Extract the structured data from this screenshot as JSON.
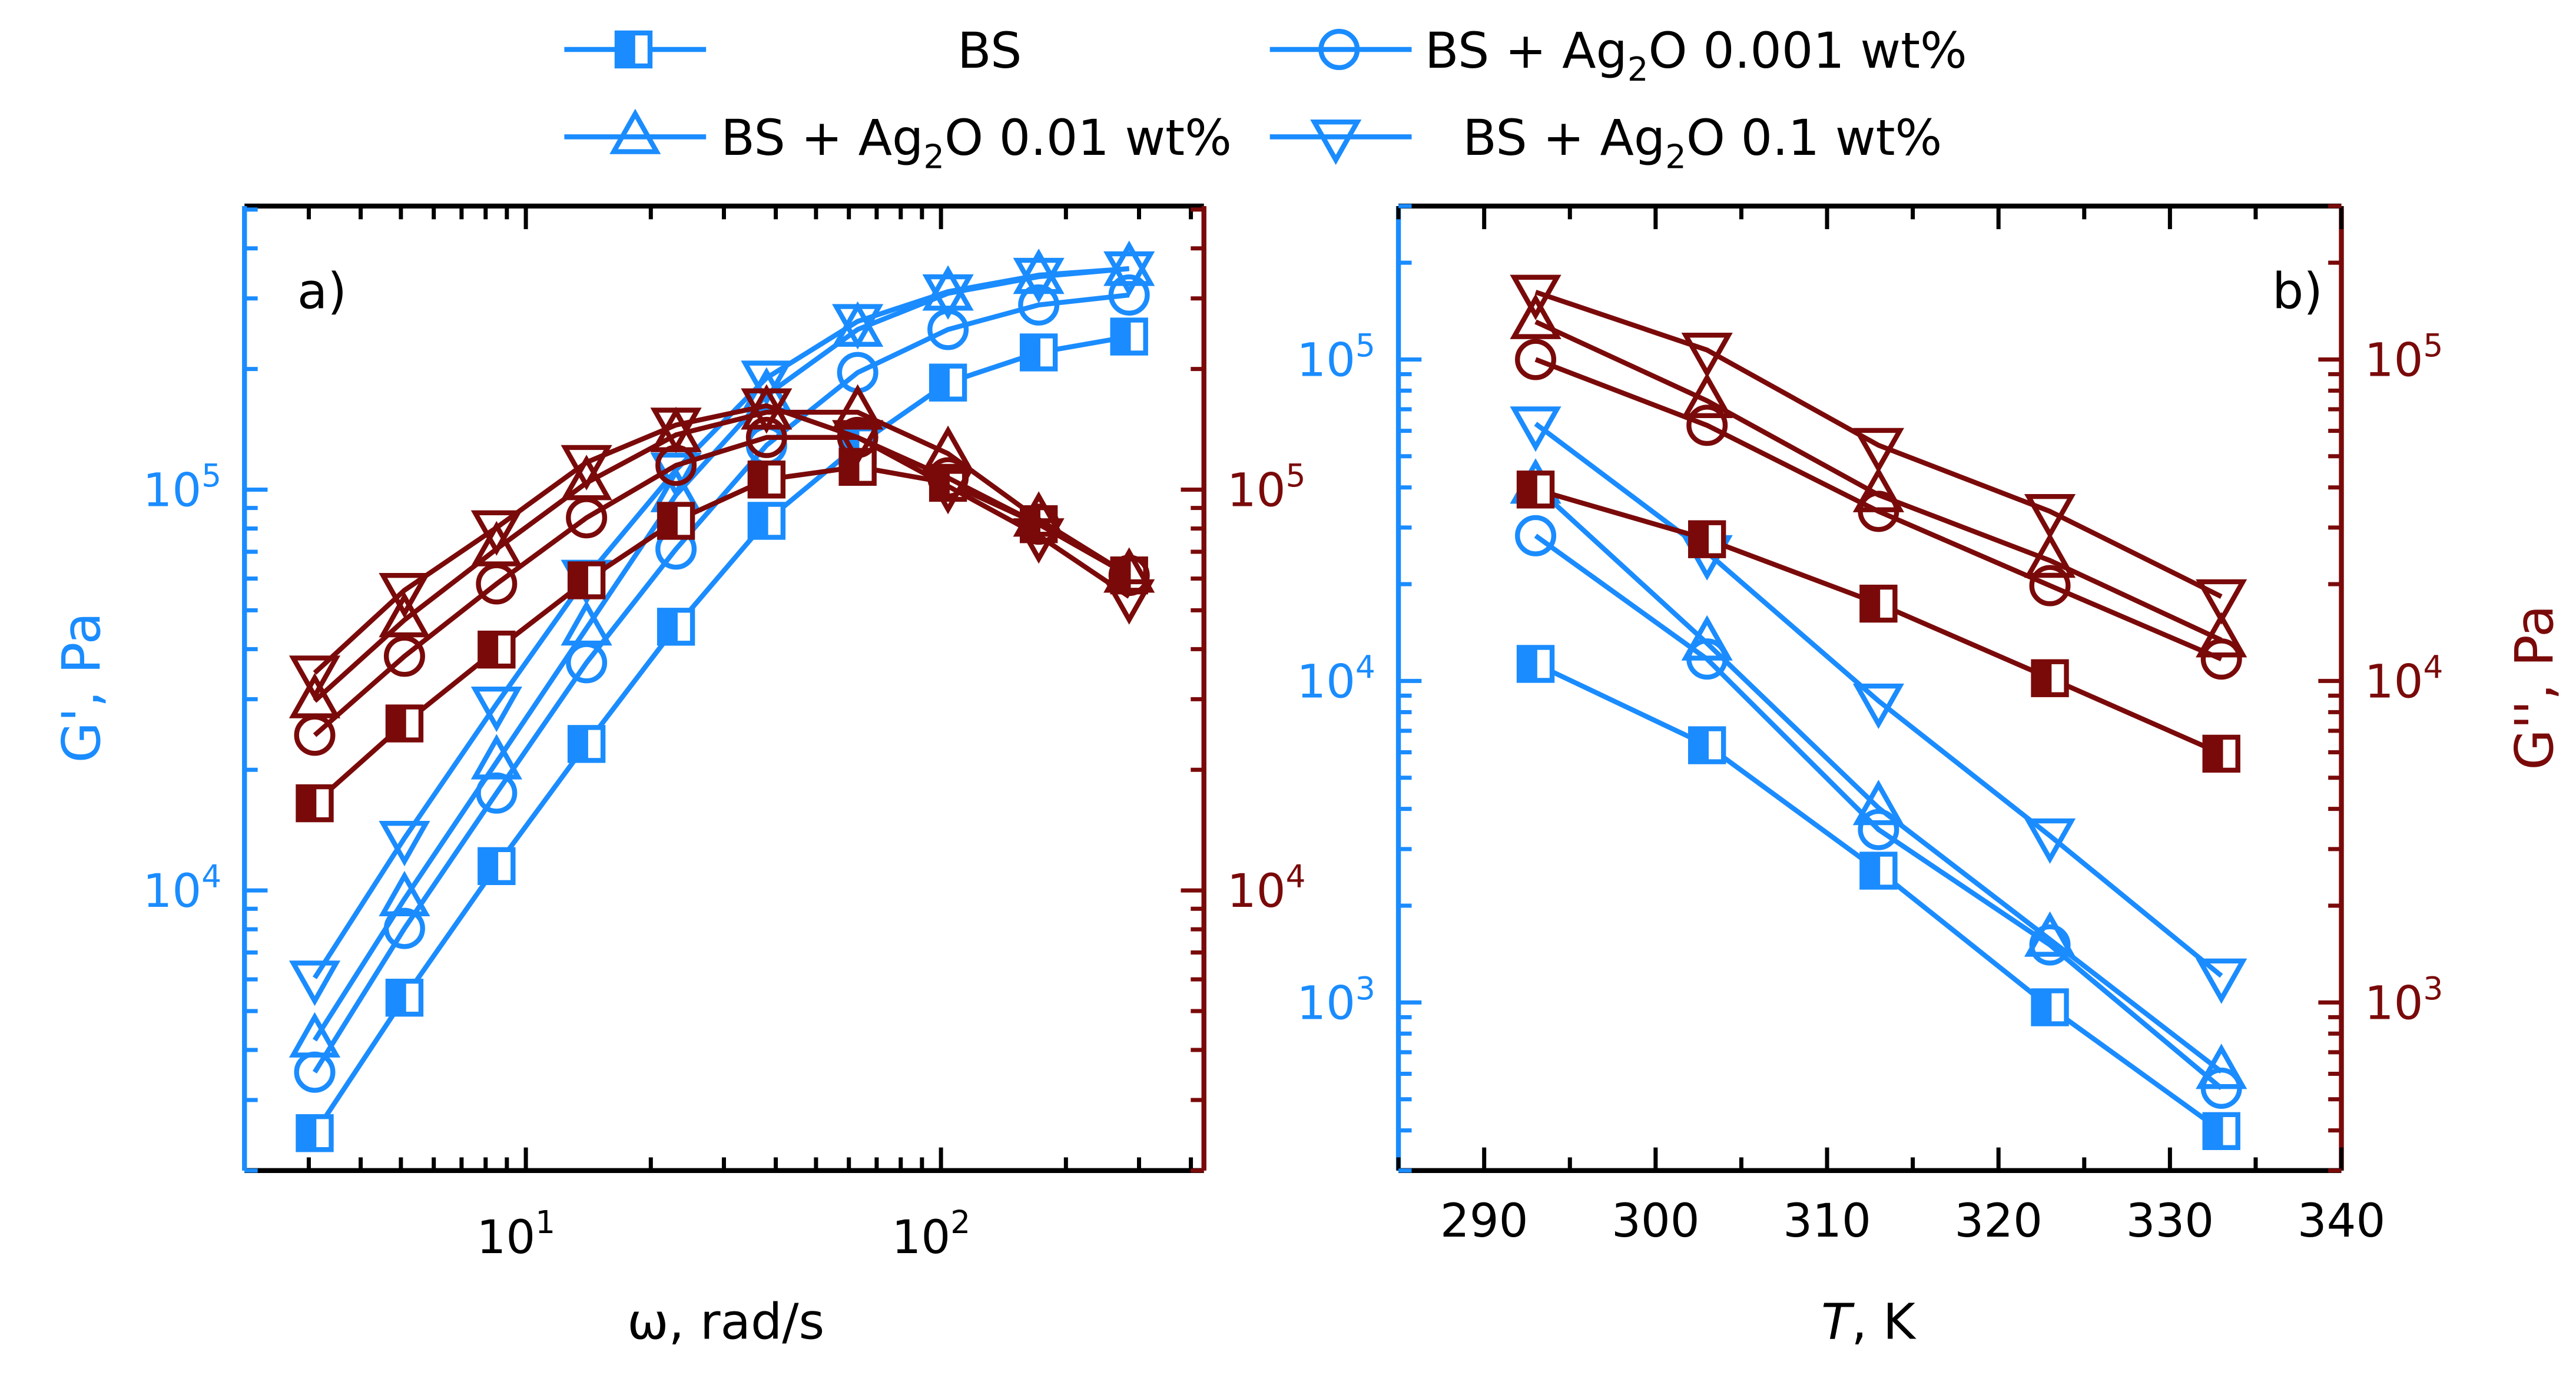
{
  "colors": {
    "gprime": "#1a8cff",
    "gdouble": "#7a0a0a",
    "frame": "#000000"
  },
  "legend": [
    {
      "marker": "half-square",
      "prefix": "BS",
      "sub": "",
      "suffix": ""
    },
    {
      "marker": "circle",
      "prefix": "BS + Ag",
      "sub": "2",
      "suffix": "O 0.001 wt%"
    },
    {
      "marker": "triangle-up",
      "prefix": "BS + Ag",
      "sub": "2",
      "suffix": "O 0.01 wt%"
    },
    {
      "marker": "triangle-down",
      "prefix": "BS + Ag",
      "sub": "2",
      "suffix": "O 0.1 wt%"
    }
  ],
  "chart_data": [
    {
      "type": "line",
      "panel_label": "a)",
      "xlabel": "ω, rad/s",
      "ylabel_left": "G', Pa",
      "ylabel_right": "",
      "xscale": "log",
      "yscale": "log",
      "xlim": [
        2.1,
        430
      ],
      "ylim": [
        2000,
        510000
      ],
      "x_ticks": [
        {
          "value": 10,
          "base": "10",
          "exp": "1"
        },
        {
          "value": 100,
          "base": "10",
          "exp": "2"
        }
      ],
      "y_ticks_left": [
        {
          "value": 10000,
          "base": "10",
          "exp": "4"
        },
        {
          "value": 100000,
          "base": "10",
          "exp": "5"
        }
      ],
      "y_ticks_right": [
        {
          "value": 10000,
          "base": "10",
          "exp": "4"
        },
        {
          "value": 100000,
          "base": "10",
          "exp": "5"
        }
      ],
      "x": [
        3.1,
        5.1,
        8.5,
        14,
        23,
        38,
        63,
        104,
        172,
        284
      ],
      "series": [
        {
          "name": "G' BS",
          "axis": "left",
          "quantity": "gprime",
          "marker": "half-square",
          "values": [
            2480,
            5400,
            11500,
            23200,
            45500,
            83600,
            129000,
            185000,
            220000,
            241000
          ]
        },
        {
          "name": "G' BS + Ag2O 0.001 wt%",
          "axis": "left",
          "quantity": "gprime",
          "marker": "circle",
          "values": [
            3520,
            8040,
            17500,
            37000,
            71100,
            129000,
            196000,
            251000,
            289000,
            306000
          ]
        },
        {
          "name": "G' BS + Ag2O 0.01 wt%",
          "axis": "left",
          "quantity": "gprime",
          "marker": "triangle-up",
          "values": [
            4230,
            9520,
            20900,
            45100,
            97000,
            172000,
            251000,
            309000,
            340000,
            356000
          ]
        },
        {
          "name": "G' BS + Ag2O 0.1 wt%",
          "axis": "left",
          "quantity": "gprime",
          "marker": "triangle-down",
          "values": [
            6050,
            13500,
            29200,
            60500,
            112000,
            190000,
            263000,
            312000,
            343000,
            356000
          ]
        },
        {
          "name": "G'' BS",
          "axis": "right",
          "quantity": "gdouble",
          "marker": "half-square",
          "values": [
            16500,
            26100,
            39900,
            59400,
            83600,
            106000,
            114000,
            104000,
            82000,
            61100
          ]
        },
        {
          "name": "G'' BS + Ag2O 0.001 wt%",
          "axis": "right",
          "quantity": "gdouble",
          "marker": "circle",
          "values": [
            24400,
            38400,
            58200,
            85100,
            115000,
            135000,
            135000,
            107000,
            82000,
            61100
          ]
        },
        {
          "name": "G'' BS + Ag2O 0.01 wt%",
          "axis": "right",
          "quantity": "gdouble",
          "marker": "triangle-up",
          "values": [
            29700,
            47300,
            71100,
            104000,
            137000,
            156000,
            156000,
            123000,
            84300,
            61100
          ]
        },
        {
          "name": "G'' BS + Ag2O 0.1 wt%",
          "axis": "right",
          "quantity": "gdouble",
          "marker": "triangle-down",
          "values": [
            34900,
            56100,
            80400,
            117000,
            145000,
            162000,
            135000,
            102000,
            76800,
            54100
          ]
        }
      ]
    },
    {
      "type": "line",
      "panel_label": "b)",
      "xlabel_italic": "T",
      "xlabel_rest": ", K",
      "ylabel_left": "",
      "ylabel_right": "G'', Pa",
      "xscale": "linear",
      "yscale": "log",
      "xlim": [
        285,
        340
      ],
      "ylim": [
        300,
        300000
      ],
      "x_ticks": [
        {
          "value": 290,
          "label": "290"
        },
        {
          "value": 300,
          "label": "300"
        },
        {
          "value": 310,
          "label": "310"
        },
        {
          "value": 320,
          "label": "320"
        },
        {
          "value": 330,
          "label": "330"
        },
        {
          "value": 340,
          "label": "340"
        }
      ],
      "y_ticks_left": [
        {
          "value": 1000,
          "base": "10",
          "exp": "3"
        },
        {
          "value": 10000,
          "base": "10",
          "exp": "4"
        },
        {
          "value": 100000,
          "base": "10",
          "exp": "5"
        }
      ],
      "y_ticks_right": [
        {
          "value": 1000,
          "base": "10",
          "exp": "3"
        },
        {
          "value": 10000,
          "base": "10",
          "exp": "4"
        },
        {
          "value": 100000,
          "base": "10",
          "exp": "5"
        }
      ],
      "x": [
        293,
        303,
        313,
        323,
        333
      ],
      "series": [
        {
          "name": "G' BS",
          "axis": "left",
          "quantity": "gprime",
          "marker": "half-square",
          "values": [
            11300,
            6310,
            2570,
            966,
            398
          ]
        },
        {
          "name": "G' BS + Ag2O 0.001 wt%",
          "axis": "left",
          "quantity": "gprime",
          "marker": "circle",
          "values": [
            28300,
            11700,
            3450,
            1510,
            541
          ]
        },
        {
          "name": "G' BS + Ag2O 0.01 wt%",
          "axis": "left",
          "quantity": "gprime",
          "marker": "triangle-up",
          "values": [
            40300,
            13100,
            4030,
            1570,
            609
          ]
        },
        {
          "name": "G' BS + Ag2O 0.1 wt%",
          "axis": "left",
          "quantity": "gprime",
          "marker": "triangle-down",
          "values": [
            63100,
            25100,
            8670,
            3300,
            1210
          ]
        },
        {
          "name": "G'' BS",
          "axis": "right",
          "quantity": "gdouble",
          "marker": "half-square",
          "values": [
            39400,
            27600,
            17400,
            10200,
            5940
          ]
        },
        {
          "name": "G'' BS + Ag2O 0.001 wt%",
          "axis": "right",
          "quantity": "gdouble",
          "marker": "circle",
          "values": [
            100000,
            62400,
            33700,
            19800,
            11700
          ]
        },
        {
          "name": "G'' BS + Ag2O 0.01 wt%",
          "axis": "right",
          "quantity": "gdouble",
          "marker": "triangle-up",
          "values": [
            131000,
            74400,
            37900,
            23700,
            13400
          ]
        },
        {
          "name": "G'' BS + Ag2O 0.1 wt%",
          "axis": "right",
          "quantity": "gdouble",
          "marker": "triangle-down",
          "values": [
            162000,
            107000,
            54100,
            33700,
            18300
          ]
        }
      ]
    }
  ]
}
